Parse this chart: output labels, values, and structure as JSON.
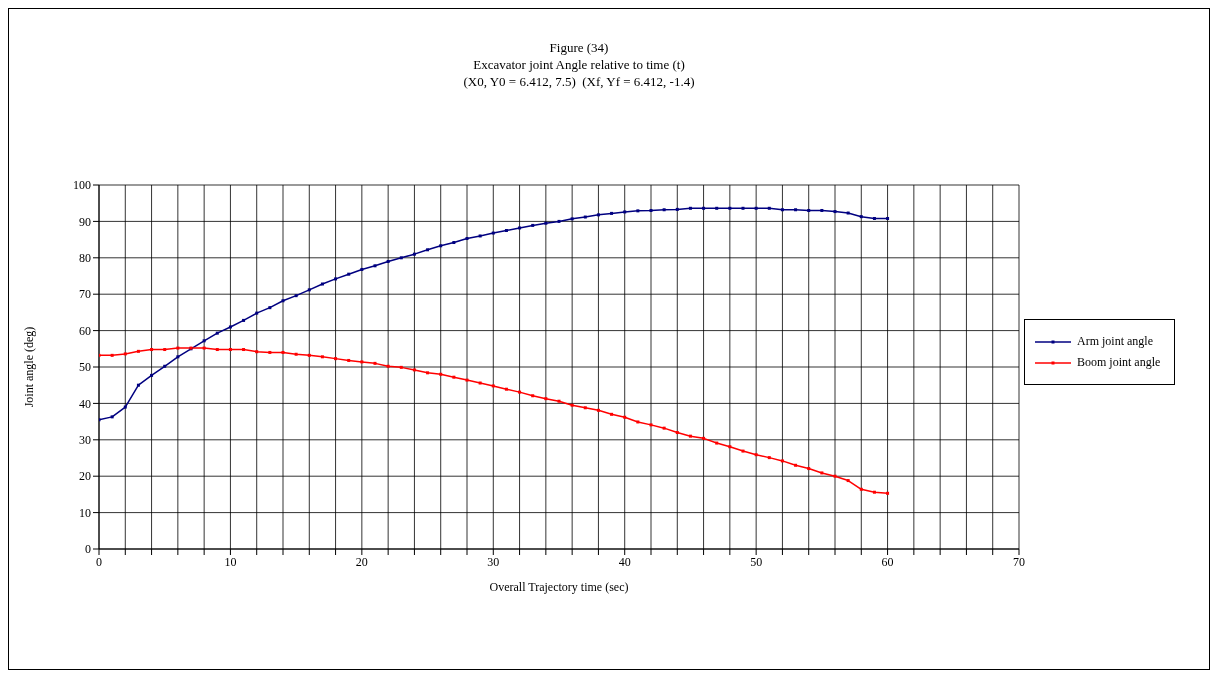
{
  "chart_data": {
    "type": "line",
    "title": "Figure (34)\nExcavator joint Angle relative to time (t)\n(X0, Y0 = 6.412, 7.5)  (Xf, Yf = 6.412, -1.4)",
    "xlabel": "Overall Trajectory time (sec)",
    "ylabel": "Joint angle (deg)",
    "x": [
      0,
      1,
      2,
      3,
      4,
      5,
      6,
      7,
      8,
      9,
      10,
      11,
      12,
      13,
      14,
      15,
      16,
      17,
      18,
      19,
      20,
      21,
      22,
      23,
      24,
      25,
      26,
      27,
      28,
      29,
      30,
      31,
      32,
      33,
      34,
      35,
      36,
      37,
      38,
      39,
      40,
      41,
      42,
      43,
      44,
      45,
      46,
      47,
      48,
      49,
      50,
      51,
      52,
      53,
      54,
      55,
      56,
      57,
      58,
      59,
      60
    ],
    "series": [
      {
        "name": "Arm joint angle",
        "color": "#000080",
        "values": [
          35.5,
          36.3,
          39,
          45,
          47.7,
          50.2,
          52.8,
          55,
          57.2,
          59.3,
          61,
          62.8,
          64.8,
          66.3,
          68.2,
          69.6,
          71.2,
          72.8,
          74.2,
          75.5,
          76.8,
          77.8,
          79,
          80,
          81,
          82.2,
          83.3,
          84.2,
          85.3,
          86,
          86.8,
          87.5,
          88.2,
          88.9,
          89.5,
          90,
          90.7,
          91.2,
          91.8,
          92.2,
          92.6,
          92.9,
          93,
          93.2,
          93.3,
          93.6,
          93.6,
          93.6,
          93.6,
          93.6,
          93.6,
          93.6,
          93.2,
          93.2,
          93,
          93,
          92.7,
          92.3,
          91.3,
          90.8,
          90.8
        ]
      },
      {
        "name": "Boom joint angle",
        "color": "#ff0000",
        "values": [
          53.2,
          53.2,
          53.6,
          54.3,
          54.8,
          54.8,
          55.2,
          55.2,
          55.2,
          54.8,
          54.8,
          54.8,
          54.2,
          54,
          54,
          53.5,
          53.2,
          52.8,
          52.3,
          51.8,
          51.4,
          51,
          50.2,
          49.9,
          49.2,
          48.4,
          48,
          47.2,
          46.4,
          45.6,
          44.8,
          43.9,
          43.1,
          42.1,
          41.3,
          40.6,
          39.5,
          38.8,
          38.1,
          37,
          36.2,
          34.9,
          34.1,
          33.2,
          32,
          31,
          30.4,
          29.1,
          28.1,
          26.9,
          25.9,
          25.1,
          24.2,
          23,
          22.1,
          20.9,
          20,
          18.8,
          16.4,
          15.6,
          15.3
        ]
      }
    ],
    "xlim": [
      0,
      70
    ],
    "xticks": [
      0,
      {
        "value": 2,
        "label": null
      },
      {
        "value": 4,
        "label": null
      },
      {
        "value": 6,
        "label": null
      },
      {
        "value": 8,
        "label": null
      },
      10,
      {
        "value": 12,
        "label": null
      },
      {
        "value": 14,
        "label": null
      },
      {
        "value": 16,
        "label": null
      },
      {
        "value": 18,
        "label": null
      },
      20,
      {
        "value": 22,
        "label": null
      },
      {
        "value": 24,
        "label": null
      },
      {
        "value": 26,
        "label": null
      },
      {
        "value": 28,
        "label": null
      },
      30,
      {
        "value": 32,
        "label": null
      },
      {
        "value": 34,
        "label": null
      },
      {
        "value": 36,
        "label": null
      },
      {
        "value": 38,
        "label": null
      },
      40,
      {
        "value": 42,
        "label": null
      },
      {
        "value": 44,
        "label": null
      },
      {
        "value": 46,
        "label": null
      },
      {
        "value": 48,
        "label": null
      },
      50,
      {
        "value": 52,
        "label": null
      },
      {
        "value": 54,
        "label": null
      },
      {
        "value": 56,
        "label": null
      },
      {
        "value": 58,
        "label": null
      },
      60,
      {
        "value": 62,
        "label": null
      },
      {
        "value": 64,
        "label": null
      },
      {
        "value": 66,
        "label": null
      },
      {
        "value": 68,
        "label": null
      },
      70
    ],
    "ylim": [
      0,
      100
    ],
    "yticks": [
      0,
      10,
      20,
      30,
      40,
      50,
      60,
      70,
      80,
      90,
      100
    ],
    "grid": true,
    "legend": "right",
    "marker": "square",
    "line_style": "solid"
  }
}
